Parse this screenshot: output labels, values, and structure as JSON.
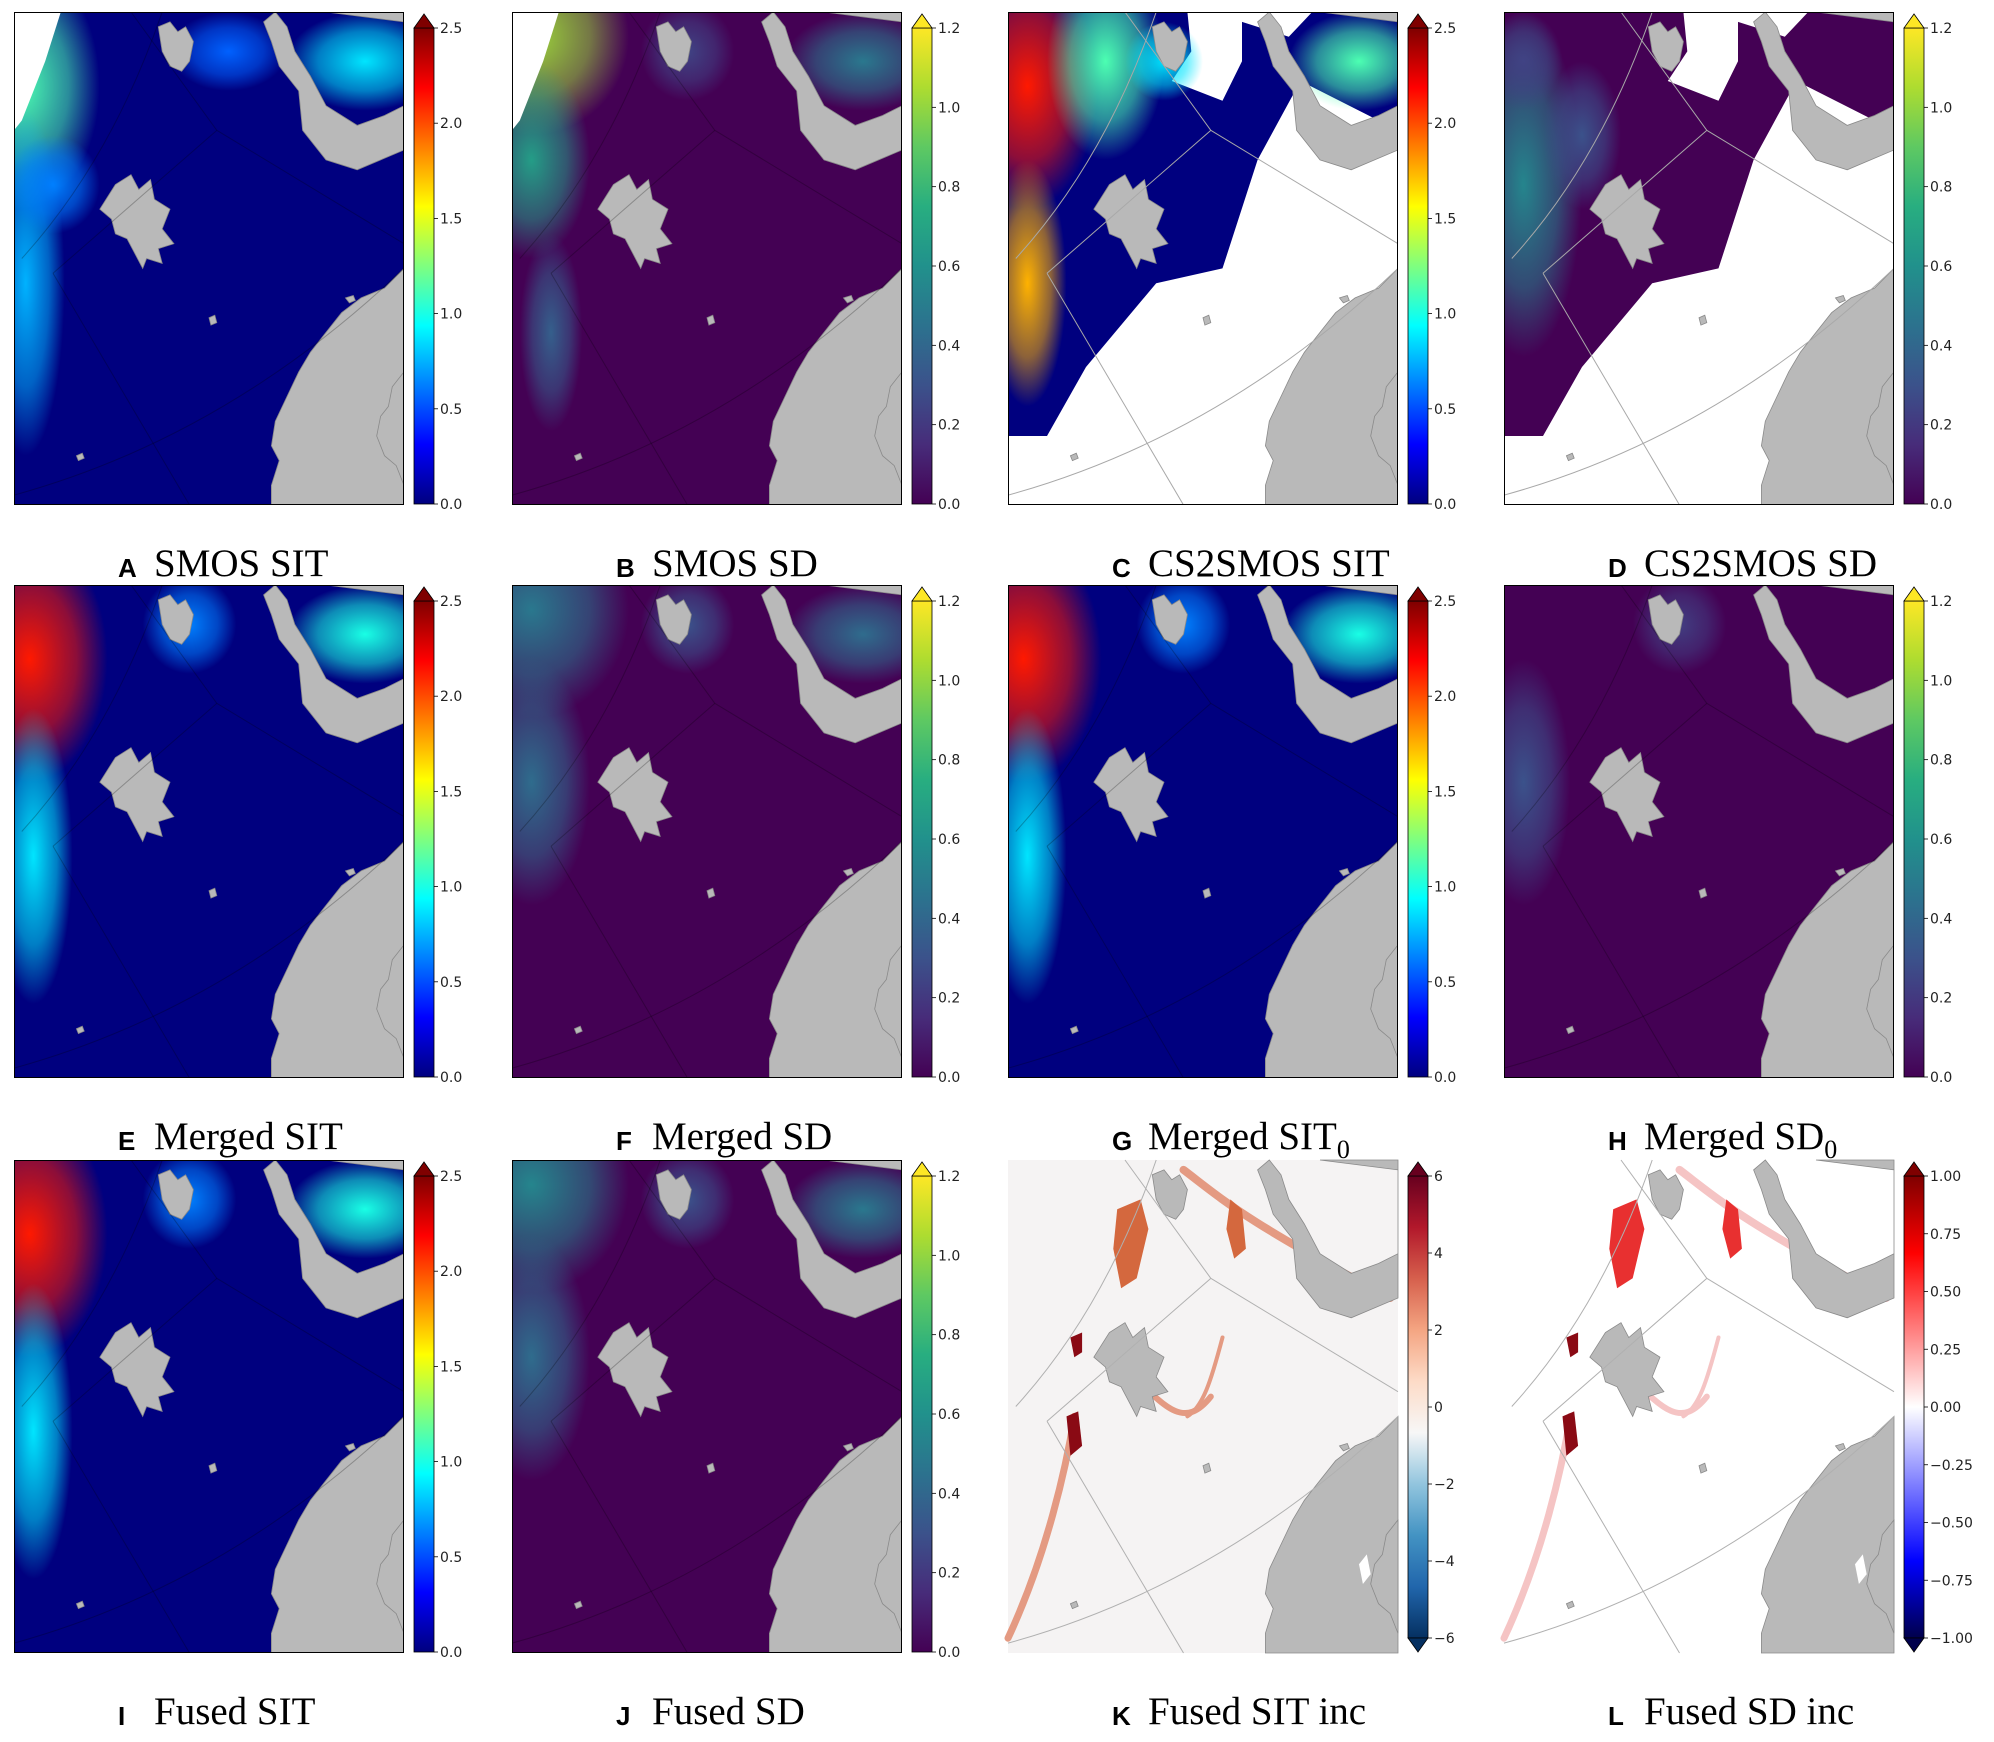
{
  "figure": {
    "panels": [
      {
        "letter": "A",
        "title": "SMOS SIT",
        "colormap": "jet",
        "field": "sit_smos",
        "ticks": [
          "0.0",
          "0.5",
          "1.0",
          "1.5",
          "2.0",
          "2.5"
        ],
        "extend": "max"
      },
      {
        "letter": "B",
        "title": "SMOS SD",
        "colormap": "viridis",
        "field": "sd_smos",
        "ticks": [
          "0.0",
          "0.2",
          "0.4",
          "0.6",
          "0.8",
          "1.0",
          "1.2"
        ],
        "extend": "max"
      },
      {
        "letter": "C",
        "title": "CS2SMOS SIT",
        "colormap": "jet",
        "field": "sit_cs2",
        "ticks": [
          "0.0",
          "0.5",
          "1.0",
          "1.5",
          "2.0",
          "2.5"
        ],
        "extend": "max"
      },
      {
        "letter": "D",
        "title": "CS2SMOS SD",
        "colormap": "viridis",
        "field": "sd_cs2",
        "ticks": [
          "0.0",
          "0.2",
          "0.4",
          "0.6",
          "0.8",
          "1.0",
          "1.2"
        ],
        "extend": "max"
      },
      {
        "letter": "E",
        "title": "Merged SIT",
        "colormap": "jet",
        "field": "sit_merged",
        "ticks": [
          "0.0",
          "0.5",
          "1.0",
          "1.5",
          "2.0",
          "2.5"
        ],
        "extend": "max"
      },
      {
        "letter": "F",
        "title": "Merged SD",
        "colormap": "viridis",
        "field": "sd_merged",
        "ticks": [
          "0.0",
          "0.2",
          "0.4",
          "0.6",
          "0.8",
          "1.0",
          "1.2"
        ],
        "extend": "max"
      },
      {
        "letter": "G",
        "title": "Merged SIT",
        "subscript": "0",
        "colormap": "jet",
        "field": "sit_merged0",
        "ticks": [
          "0.0",
          "0.5",
          "1.0",
          "1.5",
          "2.0",
          "2.5"
        ],
        "extend": "max"
      },
      {
        "letter": "H",
        "title": "Merged SD",
        "subscript": "0",
        "colormap": "viridis",
        "field": "sd_merged0",
        "ticks": [
          "0.0",
          "0.2",
          "0.4",
          "0.6",
          "0.8",
          "1.0",
          "1.2"
        ],
        "extend": "max"
      },
      {
        "letter": "I",
        "title": "Fused SIT",
        "colormap": "jet",
        "field": "sit_fused",
        "ticks": [
          "0.0",
          "0.5",
          "1.0",
          "1.5",
          "2.0",
          "2.5"
        ],
        "extend": "max"
      },
      {
        "letter": "J",
        "title": "Fused SD",
        "colormap": "viridis",
        "field": "sd_fused",
        "ticks": [
          "0.0",
          "0.2",
          "0.4",
          "0.6",
          "0.8",
          "1.0",
          "1.2"
        ],
        "extend": "max"
      },
      {
        "letter": "K",
        "title": "Fused SIT inc",
        "colormap": "rdbu",
        "field": "sit_inc",
        "ticks": [
          "−6",
          "−4",
          "−2",
          "0",
          "2",
          "4",
          "6"
        ],
        "extend": "both"
      },
      {
        "letter": "L",
        "title": "Fused SD inc",
        "colormap": "seismic",
        "field": "sd_inc",
        "ticks": [
          "−1.00",
          "−0.75",
          "−0.50",
          "−0.25",
          "0.00",
          "0.25",
          "0.50",
          "0.75",
          "1.00"
        ],
        "extend": "both"
      }
    ]
  },
  "chart_data": [
    {
      "type": "heatmap",
      "panel": "A",
      "title": "SMOS SIT",
      "colorbar": {
        "range": [
          0.0,
          2.5
        ],
        "ticks": [
          0.0,
          0.5,
          1.0,
          1.5,
          2.0,
          2.5
        ]
      }
    },
    {
      "type": "heatmap",
      "panel": "B",
      "title": "SMOS SD",
      "colorbar": {
        "range": [
          0.0,
          1.2
        ],
        "ticks": [
          0.0,
          0.2,
          0.4,
          0.6,
          0.8,
          1.0,
          1.2
        ]
      }
    },
    {
      "type": "heatmap",
      "panel": "C",
      "title": "CS2SMOS SIT",
      "colorbar": {
        "range": [
          0.0,
          2.5
        ],
        "ticks": [
          0.0,
          0.5,
          1.0,
          1.5,
          2.0,
          2.5
        ]
      }
    },
    {
      "type": "heatmap",
      "panel": "D",
      "title": "CS2SMOS SD",
      "colorbar": {
        "range": [
          0.0,
          1.2
        ],
        "ticks": [
          0.0,
          0.2,
          0.4,
          0.6,
          0.8,
          1.0,
          1.2
        ]
      }
    },
    {
      "type": "heatmap",
      "panel": "E",
      "title": "Merged SIT",
      "colorbar": {
        "range": [
          0.0,
          2.5
        ],
        "ticks": [
          0.0,
          0.5,
          1.0,
          1.5,
          2.0,
          2.5
        ]
      }
    },
    {
      "type": "heatmap",
      "panel": "F",
      "title": "Merged SD",
      "colorbar": {
        "range": [
          0.0,
          1.2
        ],
        "ticks": [
          0.0,
          0.2,
          0.4,
          0.6,
          0.8,
          1.0,
          1.2
        ]
      }
    },
    {
      "type": "heatmap",
      "panel": "G",
      "title": "Merged SIT0",
      "colorbar": {
        "range": [
          0.0,
          2.5
        ],
        "ticks": [
          0.0,
          0.5,
          1.0,
          1.5,
          2.0,
          2.5
        ]
      }
    },
    {
      "type": "heatmap",
      "panel": "H",
      "title": "Merged SD0",
      "colorbar": {
        "range": [
          0.0,
          1.2
        ],
        "ticks": [
          0.0,
          0.2,
          0.4,
          0.6,
          0.8,
          1.0,
          1.2
        ]
      }
    },
    {
      "type": "heatmap",
      "panel": "I",
      "title": "Fused SIT",
      "colorbar": {
        "range": [
          0.0,
          2.5
        ],
        "ticks": [
          0.0,
          0.5,
          1.0,
          1.5,
          2.0,
          2.5
        ]
      }
    },
    {
      "type": "heatmap",
      "panel": "J",
      "title": "Fused SD",
      "colorbar": {
        "range": [
          0.0,
          1.2
        ],
        "ticks": [
          0.0,
          0.2,
          0.4,
          0.6,
          0.8,
          1.0,
          1.2
        ]
      }
    },
    {
      "type": "heatmap",
      "panel": "K",
      "title": "Fused SIT inc",
      "colorbar": {
        "range": [
          -6,
          6
        ],
        "ticks": [
          -6,
          -4,
          -2,
          0,
          2,
          4,
          6
        ]
      }
    },
    {
      "type": "heatmap",
      "panel": "L",
      "title": "Fused SD inc",
      "colorbar": {
        "range": [
          -1.0,
          1.0
        ],
        "ticks": [
          -1.0,
          -0.75,
          -0.5,
          -0.25,
          0.0,
          0.25,
          0.5,
          0.75,
          1.0
        ]
      }
    }
  ]
}
